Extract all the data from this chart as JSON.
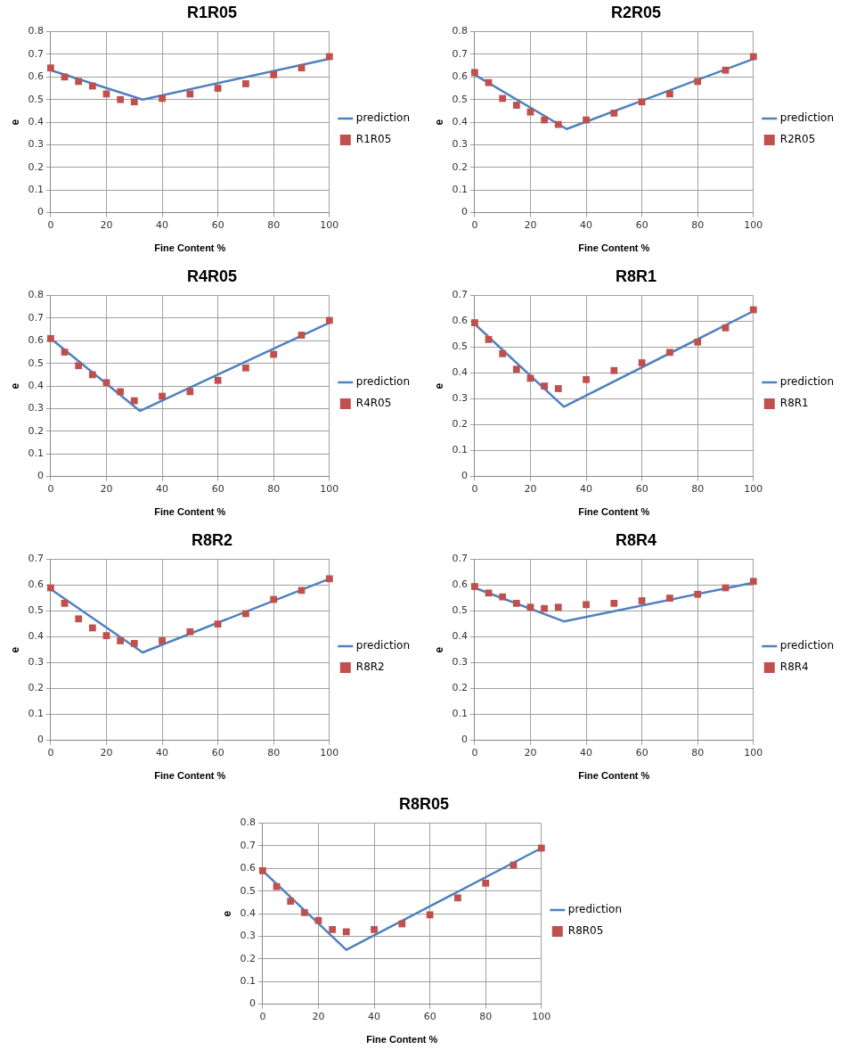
{
  "chart_data": [
    {
      "type": "scatter",
      "title": "R1R05",
      "xlabel": "Fine Content %",
      "ylabel": "e",
      "xlim": [
        0,
        100
      ],
      "xticks": [
        0,
        20,
        40,
        60,
        80,
        100
      ],
      "ylim": [
        0,
        0.8
      ],
      "yticks": [
        0,
        0.1,
        0.2,
        0.3,
        0.4,
        0.5,
        0.6,
        0.7,
        0.8
      ],
      "grid": true,
      "legend": "right",
      "marker": "square",
      "x": [
        0,
        5,
        10,
        15,
        20,
        25,
        30,
        40,
        50,
        60,
        70,
        80,
        90,
        100
      ],
      "series": [
        {
          "name": "prediction",
          "type": "line",
          "marker": "none",
          "color": "#4f81bd",
          "x": [
            0,
            33,
            100
          ],
          "values": [
            0.63,
            0.5,
            0.68
          ]
        },
        {
          "name": "R1R05",
          "color": "#c0504d",
          "values": [
            0.64,
            0.6,
            0.58,
            0.56,
            0.525,
            0.5,
            0.49,
            0.505,
            0.525,
            0.55,
            0.57,
            0.61,
            0.64,
            0.69
          ]
        }
      ]
    },
    {
      "type": "scatter",
      "title": "R2R05",
      "xlabel": "Fine Content %",
      "ylabel": "e",
      "xlim": [
        0,
        100
      ],
      "xticks": [
        0,
        20,
        40,
        60,
        80,
        100
      ],
      "ylim": [
        0,
        0.8
      ],
      "yticks": [
        0,
        0.1,
        0.2,
        0.3,
        0.4,
        0.5,
        0.6,
        0.7,
        0.8
      ],
      "grid": true,
      "legend": "right",
      "marker": "square",
      "x": [
        0,
        5,
        10,
        15,
        20,
        25,
        30,
        40,
        50,
        60,
        70,
        80,
        90,
        100
      ],
      "series": [
        {
          "name": "prediction",
          "type": "line",
          "marker": "none",
          "color": "#4f81bd",
          "x": [
            0,
            33,
            100
          ],
          "values": [
            0.61,
            0.37,
            0.68
          ]
        },
        {
          "name": "R2R05",
          "color": "#c0504d",
          "values": [
            0.62,
            0.575,
            0.505,
            0.475,
            0.445,
            0.41,
            0.39,
            0.41,
            0.44,
            0.49,
            0.525,
            0.58,
            0.63,
            0.69
          ]
        }
      ]
    },
    {
      "type": "scatter",
      "title": "R4R05",
      "xlabel": "Fine Content %",
      "ylabel": "e",
      "xlim": [
        0,
        100
      ],
      "xticks": [
        0,
        20,
        40,
        60,
        80,
        100
      ],
      "ylim": [
        0,
        0.8
      ],
      "yticks": [
        0,
        0.1,
        0.2,
        0.3,
        0.4,
        0.5,
        0.6,
        0.7,
        0.8
      ],
      "grid": true,
      "legend": "right",
      "marker": "square",
      "x": [
        0,
        5,
        10,
        15,
        20,
        25,
        30,
        40,
        50,
        60,
        70,
        80,
        90,
        100
      ],
      "series": [
        {
          "name": "prediction",
          "type": "line",
          "marker": "none",
          "color": "#4f81bd",
          "x": [
            0,
            32,
            100
          ],
          "values": [
            0.61,
            0.29,
            0.68
          ]
        },
        {
          "name": "R4R05",
          "color": "#c0504d",
          "values": [
            0.61,
            0.55,
            0.49,
            0.45,
            0.415,
            0.375,
            0.335,
            0.355,
            0.375,
            0.425,
            0.48,
            0.54,
            0.625,
            0.69
          ]
        }
      ]
    },
    {
      "type": "scatter",
      "title": "R8R1",
      "xlabel": "Fine Content %",
      "ylabel": "e",
      "xlim": [
        0,
        100
      ],
      "xticks": [
        0,
        20,
        40,
        60,
        80,
        100
      ],
      "ylim": [
        0,
        0.7
      ],
      "yticks": [
        0,
        0.1,
        0.2,
        0.3,
        0.4,
        0.5,
        0.6,
        0.7
      ],
      "grid": true,
      "legend": "right",
      "marker": "square",
      "x": [
        0,
        5,
        10,
        15,
        20,
        25,
        30,
        40,
        50,
        60,
        70,
        80,
        90,
        100
      ],
      "series": [
        {
          "name": "prediction",
          "type": "line",
          "marker": "none",
          "color": "#4f81bd",
          "x": [
            0,
            32,
            100
          ],
          "values": [
            0.59,
            0.27,
            0.64
          ]
        },
        {
          "name": "R8R1",
          "color": "#c0504d",
          "values": [
            0.595,
            0.53,
            0.475,
            0.415,
            0.38,
            0.35,
            0.34,
            0.375,
            0.41,
            0.44,
            0.48,
            0.52,
            0.575,
            0.645
          ]
        }
      ]
    },
    {
      "type": "scatter",
      "title": "R8R2",
      "xlabel": "Fine Content %",
      "ylabel": "e",
      "xlim": [
        0,
        100
      ],
      "xticks": [
        0,
        20,
        40,
        60,
        80,
        100
      ],
      "ylim": [
        0,
        0.7
      ],
      "yticks": [
        0,
        0.1,
        0.2,
        0.3,
        0.4,
        0.5,
        0.6,
        0.7
      ],
      "grid": true,
      "legend": "right",
      "marker": "square",
      "x": [
        0,
        5,
        10,
        15,
        20,
        25,
        30,
        40,
        50,
        60,
        70,
        80,
        90,
        100
      ],
      "series": [
        {
          "name": "prediction",
          "type": "line",
          "marker": "none",
          "color": "#4f81bd",
          "x": [
            0,
            33,
            100
          ],
          "values": [
            0.585,
            0.34,
            0.625
          ]
        },
        {
          "name": "R8R2",
          "color": "#c0504d",
          "values": [
            0.59,
            0.53,
            0.47,
            0.435,
            0.405,
            0.385,
            0.375,
            0.385,
            0.42,
            0.45,
            0.49,
            0.545,
            0.58,
            0.625
          ]
        }
      ]
    },
    {
      "type": "scatter",
      "title": "R8R4",
      "xlabel": "Fine Content %",
      "ylabel": "e",
      "xlim": [
        0,
        100
      ],
      "xticks": [
        0,
        20,
        40,
        60,
        80,
        100
      ],
      "ylim": [
        0,
        0.7
      ],
      "yticks": [
        0,
        0.1,
        0.2,
        0.3,
        0.4,
        0.5,
        0.6,
        0.7
      ],
      "grid": true,
      "legend": "right",
      "marker": "square",
      "x": [
        0,
        5,
        10,
        15,
        20,
        25,
        30,
        40,
        50,
        60,
        70,
        80,
        90,
        100
      ],
      "series": [
        {
          "name": "prediction",
          "type": "line",
          "marker": "none",
          "color": "#4f81bd",
          "x": [
            0,
            32,
            100
          ],
          "values": [
            0.59,
            0.46,
            0.61
          ]
        },
        {
          "name": "R8R4",
          "color": "#c0504d",
          "values": [
            0.595,
            0.57,
            0.555,
            0.53,
            0.515,
            0.51,
            0.515,
            0.525,
            0.53,
            0.54,
            0.55,
            0.565,
            0.59,
            0.615
          ]
        }
      ]
    },
    {
      "type": "scatter",
      "title": "R8R05",
      "xlabel": "Fine Content %",
      "ylabel": "e",
      "xlim": [
        0,
        100
      ],
      "xticks": [
        0,
        20,
        40,
        60,
        80,
        100
      ],
      "ylim": [
        0,
        0.8
      ],
      "yticks": [
        0,
        0.1,
        0.2,
        0.3,
        0.4,
        0.5,
        0.6,
        0.7,
        0.8
      ],
      "grid": true,
      "legend": "right",
      "marker": "square",
      "x": [
        0,
        5,
        10,
        15,
        20,
        25,
        30,
        40,
        50,
        60,
        70,
        80,
        90,
        100
      ],
      "series": [
        {
          "name": "prediction",
          "type": "line",
          "marker": "none",
          "color": "#4f81bd",
          "x": [
            0,
            30,
            100
          ],
          "values": [
            0.59,
            0.24,
            0.69
          ]
        },
        {
          "name": "R8R05",
          "color": "#c0504d",
          "values": [
            0.59,
            0.52,
            0.455,
            0.405,
            0.37,
            0.33,
            0.32,
            0.33,
            0.355,
            0.395,
            0.47,
            0.535,
            0.615,
            0.69
          ]
        }
      ]
    }
  ]
}
